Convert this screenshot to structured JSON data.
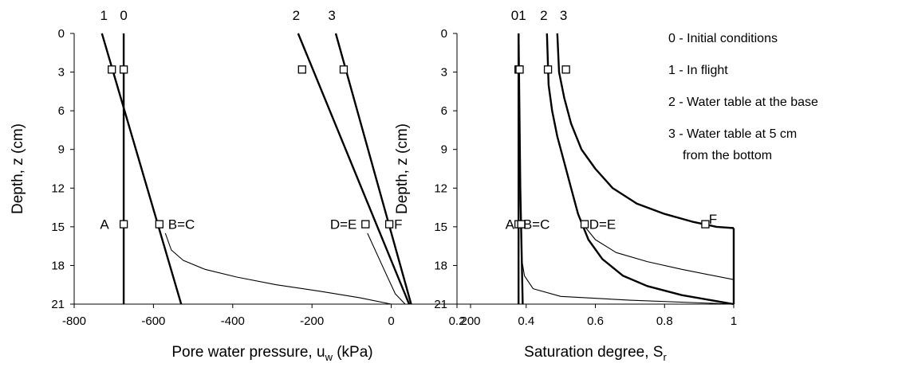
{
  "chart_data": [
    {
      "type": "line",
      "xlabel": "Pore water pressure, u",
      "xlabel_sub": "w",
      "xlabel_unit": " (kPa)",
      "ylabel": "Depth, z (cm)",
      "xlim": [
        -800,
        200
      ],
      "ylim": [
        0,
        21
      ],
      "y_reversed": true,
      "xticks": [
        -800,
        -600,
        -400,
        -200,
        0,
        200
      ],
      "yticks": [
        0,
        3,
        6,
        9,
        12,
        15,
        18,
        21
      ],
      "curve_labels": [
        {
          "text": "1",
          "x": -725
        },
        {
          "text": "0",
          "x": -675
        },
        {
          "text": "2",
          "x": -240
        },
        {
          "text": "3",
          "x": -150
        }
      ],
      "series": [
        {
          "points": [
            [
              -675,
              0
            ],
            [
              -675,
              21
            ]
          ],
          "weight": "bold"
        },
        {
          "points": [
            [
              -730,
              0
            ],
            [
              -530,
              21
            ]
          ],
          "weight": "bold"
        },
        {
          "points": [
            [
              -235,
              0
            ],
            [
              45,
              21
            ]
          ],
          "weight": "bold"
        },
        {
          "points": [
            [
              -140,
              0
            ],
            [
              50,
              21
            ]
          ],
          "weight": "bold"
        },
        {
          "points": [
            [
              -570,
              15.5
            ],
            [
              -555,
              16.8
            ],
            [
              -525,
              17.6
            ],
            [
              -470,
              18.3
            ],
            [
              -390,
              18.9
            ],
            [
              -290,
              19.5
            ],
            [
              -180,
              20.0
            ],
            [
              -80,
              20.5
            ],
            [
              0,
              21
            ]
          ],
          "weight": "thin"
        },
        {
          "points": [
            [
              -60,
              15.5
            ],
            [
              -20,
              18.2
            ],
            [
              10,
              20.2
            ],
            [
              35,
              21
            ]
          ],
          "weight": "thin"
        }
      ],
      "markers": [
        {
          "x": -705,
          "y": 2.8
        },
        {
          "x": -675,
          "y": 2.8
        },
        {
          "x": -225,
          "y": 2.8
        },
        {
          "x": -120,
          "y": 2.8
        },
        {
          "x": -675,
          "y": 14.8
        },
        {
          "x": -585,
          "y": 14.8
        },
        {
          "x": -65,
          "y": 14.8
        },
        {
          "x": -5,
          "y": 14.8
        }
      ],
      "point_labels": [
        {
          "text": "A",
          "x": -712,
          "y": 14.8,
          "anchor": "end"
        },
        {
          "text": "B=C",
          "x": -563,
          "y": 14.8,
          "anchor": "start"
        },
        {
          "text": "D=E",
          "x": -87,
          "y": 14.8,
          "anchor": "end"
        },
        {
          "text": "F",
          "x": 7,
          "y": 14.8,
          "anchor": "start"
        }
      ]
    },
    {
      "type": "line",
      "xlabel": "Saturation degree, S",
      "xlabel_sub": "r",
      "xlabel_unit": "",
      "ylabel": "Depth, z (cm)",
      "xlim": [
        0.2,
        1
      ],
      "ylim": [
        0,
        21
      ],
      "y_reversed": true,
      "xticks": [
        0.2,
        0.4,
        0.6,
        0.8,
        1
      ],
      "yticks": [
        0,
        3,
        6,
        9,
        12,
        15,
        18,
        21
      ],
      "curve_labels": [
        {
          "text": "0",
          "x": 0.367
        },
        {
          "text": "1",
          "x": 0.389
        },
        {
          "text": "2",
          "x": 0.451
        },
        {
          "text": "3",
          "x": 0.508
        }
      ],
      "series": [
        {
          "points": [
            [
              0.378,
              0
            ],
            [
              0.378,
              21
            ]
          ],
          "weight": "bold"
        },
        {
          "points": [
            [
              0.378,
              0
            ],
            [
              0.383,
              12
            ],
            [
              0.39,
              21
            ]
          ],
          "weight": "bold"
        },
        {
          "points": [
            [
              0.46,
              0
            ],
            [
              0.465,
              4
            ],
            [
              0.475,
              6
            ],
            [
              0.49,
              8
            ],
            [
              0.51,
              10
            ],
            [
              0.53,
              12
            ],
            [
              0.55,
              14
            ],
            [
              0.58,
              16
            ],
            [
              0.62,
              17.5
            ],
            [
              0.68,
              18.8
            ],
            [
              0.75,
              19.6
            ],
            [
              0.85,
              20.3
            ],
            [
              1,
              21
            ]
          ],
          "weight": "bold"
        },
        {
          "points": [
            [
              0.49,
              0
            ],
            [
              0.495,
              3
            ],
            [
              0.51,
              5
            ],
            [
              0.53,
              7
            ],
            [
              0.56,
              9
            ],
            [
              0.6,
              10.5
            ],
            [
              0.65,
              12
            ],
            [
              0.72,
              13.2
            ],
            [
              0.8,
              14
            ],
            [
              0.88,
              14.6
            ],
            [
              0.95,
              15
            ],
            [
              1,
              15.1
            ]
          ],
          "weight": "bold"
        },
        {
          "points": [
            [
              1,
              15.1
            ],
            [
              1,
              21
            ]
          ],
          "weight": "bold"
        },
        {
          "points": [
            [
              0.385,
              15.5
            ],
            [
              0.387,
              17.5
            ],
            [
              0.395,
              18.8
            ],
            [
              0.42,
              19.8
            ],
            [
              0.5,
              20.4
            ],
            [
              0.7,
              20.7
            ],
            [
              1,
              21
            ]
          ],
          "weight": "thin"
        },
        {
          "points": [
            [
              0.57,
              15
            ],
            [
              0.6,
              16
            ],
            [
              0.66,
              17
            ],
            [
              0.75,
              17.7
            ],
            [
              0.85,
              18.3
            ],
            [
              1,
              19.1
            ]
          ],
          "weight": "thin"
        }
      ],
      "markers": [
        {
          "x": 0.378,
          "y": 2.8
        },
        {
          "x": 0.381,
          "y": 2.8
        },
        {
          "x": 0.463,
          "y": 2.8
        },
        {
          "x": 0.515,
          "y": 2.8
        },
        {
          "x": 0.378,
          "y": 14.8
        },
        {
          "x": 0.386,
          "y": 14.8
        },
        {
          "x": 0.569,
          "y": 14.8
        },
        {
          "x": 0.918,
          "y": 14.8
        }
      ],
      "point_labels": [
        {
          "text": "A",
          "x": 0.366,
          "y": 14.8,
          "anchor": "end"
        },
        {
          "text": "B=C",
          "x": 0.391,
          "y": 14.8,
          "anchor": "start"
        },
        {
          "text": "D=E",
          "x": 0.582,
          "y": 14.8,
          "anchor": "start"
        },
        {
          "text": "F",
          "x": 0.928,
          "y": 14.4,
          "anchor": "start"
        }
      ]
    }
  ],
  "legend": {
    "entries": [
      "0 - Initial conditions",
      "1 - In flight",
      "2 - Water table at the base",
      "3 - Water table at 5 cm",
      "from the bottom"
    ]
  }
}
